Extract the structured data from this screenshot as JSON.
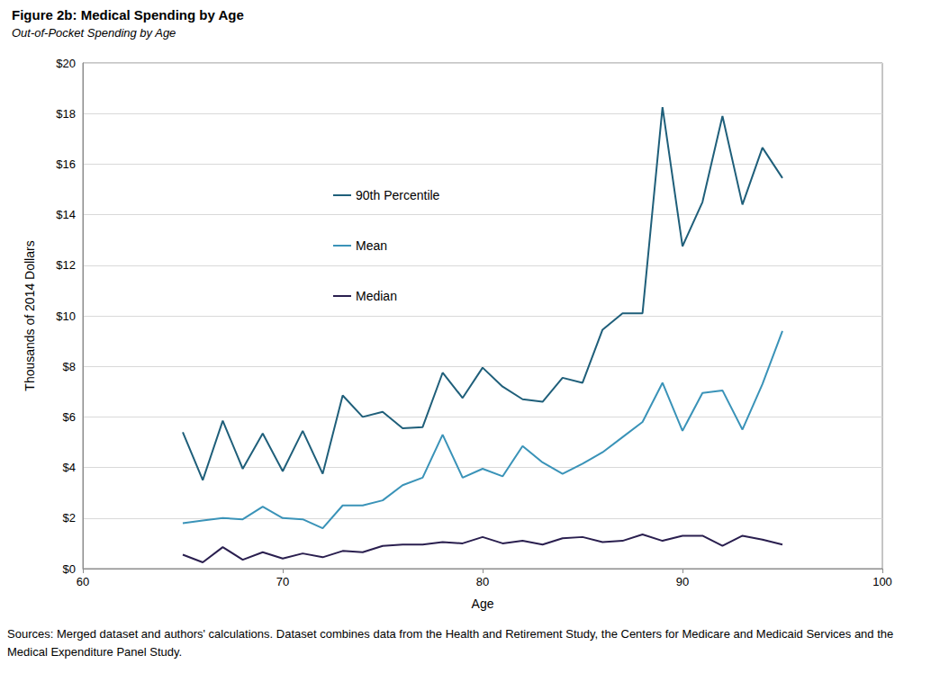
{
  "chart_data": {
    "type": "line",
    "title": "Figure 2b: Medical Spending by Age",
    "subtitle": "Out-of-Pocket Spending by Age",
    "x_label": "Age",
    "y_label": "Thousands of 2014 Dollars",
    "source": "Sources: Merged dataset and authors' calculations. Dataset combines data from the Health and Retirement Study, the Centers for Medicare and Medicaid Services and the Medical Expenditure Panel Study.",
    "x": [
      65,
      66,
      67,
      68,
      69,
      70,
      71,
      72,
      73,
      74,
      75,
      76,
      77,
      78,
      79,
      80,
      81,
      82,
      83,
      84,
      85,
      86,
      87,
      88,
      89,
      90,
      91,
      92,
      93,
      94,
      95
    ],
    "series": [
      {
        "name": "90th Percentile",
        "color": "#1f5f7a",
        "values": [
          5.4,
          3.5,
          5.85,
          3.95,
          5.35,
          3.85,
          5.45,
          3.75,
          6.85,
          6.0,
          6.2,
          5.55,
          5.6,
          7.75,
          6.75,
          7.95,
          7.2,
          6.7,
          6.6,
          7.55,
          7.35,
          9.45,
          10.1,
          10.1,
          18.25,
          12.75,
          14.5,
          17.9,
          14.4,
          16.65,
          15.45
        ]
      },
      {
        "name": "Mean",
        "color": "#3a93b8",
        "values": [
          1.8,
          1.9,
          2.0,
          1.95,
          2.45,
          2.0,
          1.95,
          1.6,
          2.5,
          2.5,
          2.7,
          3.3,
          3.6,
          5.3,
          3.6,
          3.95,
          3.65,
          4.85,
          4.2,
          3.75,
          4.15,
          4.6,
          5.2,
          5.8,
          7.35,
          5.45,
          6.95,
          7.05,
          5.5,
          7.3,
          9.4
        ]
      },
      {
        "name": "Median",
        "color": "#2a1f4f",
        "values": [
          0.55,
          0.25,
          0.85,
          0.35,
          0.65,
          0.4,
          0.6,
          0.45,
          0.7,
          0.65,
          0.9,
          0.95,
          0.95,
          1.05,
          1.0,
          1.25,
          1.0,
          1.1,
          0.95,
          1.2,
          1.25,
          1.05,
          1.1,
          1.35,
          1.1,
          1.3,
          1.3,
          0.9,
          1.3,
          1.15,
          0.95
        ]
      }
    ],
    "xlim": [
      60,
      100
    ],
    "xticks": [
      60,
      70,
      80,
      90,
      100
    ],
    "ylim": [
      0,
      20
    ],
    "yticks": [
      {
        "value": 0,
        "label": "$0"
      },
      {
        "value": 2,
        "label": "$2"
      },
      {
        "value": 4,
        "label": "$4"
      },
      {
        "value": 6,
        "label": "$6"
      },
      {
        "value": 8,
        "label": "$8"
      },
      {
        "value": 10,
        "label": "$10"
      },
      {
        "value": 12,
        "label": "$12"
      },
      {
        "value": 14,
        "label": "$14"
      },
      {
        "value": 16,
        "label": "$16"
      },
      {
        "value": 18,
        "label": "$18"
      },
      {
        "value": 20,
        "label": "$20"
      }
    ],
    "grid": true,
    "legend": "upper left"
  }
}
